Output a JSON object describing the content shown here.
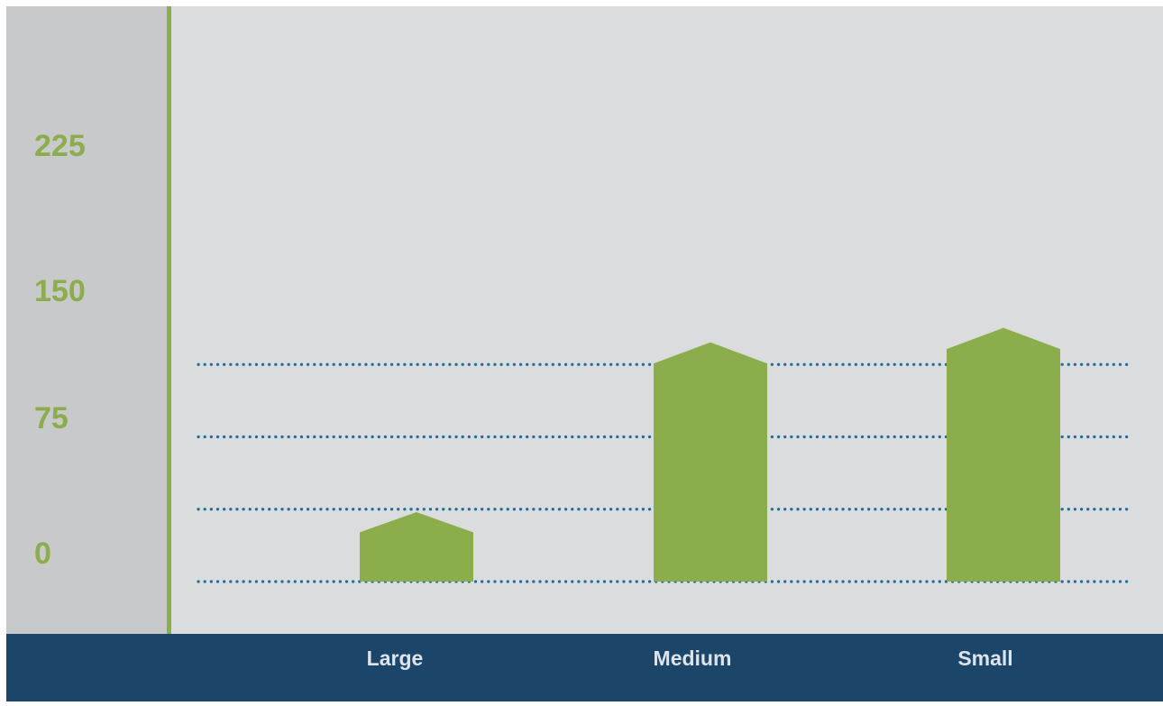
{
  "chart_data": {
    "type": "bar",
    "categories": [
      "Large",
      "Medium",
      "Small"
    ],
    "values": [
      51,
      226,
      241
    ],
    "peak_values": [
      72,
      248,
      263
    ],
    "y_ticks": [
      0,
      75,
      150,
      225
    ],
    "ylim": [
      0,
      262
    ],
    "title": "",
    "xlabel": "",
    "ylabel": "",
    "grid": true,
    "bar_shape": "house"
  },
  "colors": {
    "bar": "#8bad4b",
    "tick_label": "#8bad4b",
    "axis_line": "#8bad4b",
    "grid": "#1f6e99",
    "plot_background": "#dbdcde",
    "axis_panel": "#c8c9cb",
    "footer_band": "#1b466a",
    "category_label": "#dde3ea"
  }
}
